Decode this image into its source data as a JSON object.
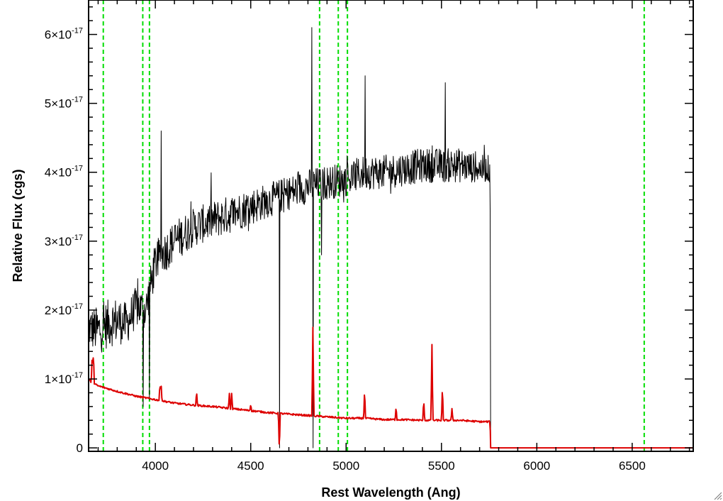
{
  "chart_data": {
    "type": "line",
    "title": "",
    "xlabel": "Rest Wavelength (Ang)",
    "ylabel": "Relative Flux (cgs)",
    "xlim": [
      3650,
      6820
    ],
    "ylim": [
      -0.05,
      6.5
    ],
    "y_scale_exponent": -17,
    "x_ticks": [
      4000,
      4500,
      5000,
      5500,
      6000,
      6500
    ],
    "x_tick_labels": [
      "4000",
      "4500",
      "5000",
      "5500",
      "6000",
      "6500"
    ],
    "y_ticks": [
      0,
      1,
      2,
      3,
      4,
      5,
      6
    ],
    "y_tick_labels": [
      {
        "value": 0,
        "mantissa": "0",
        "times": "",
        "base": "",
        "exp": ""
      },
      {
        "value": 1,
        "mantissa": "1",
        "times": "×",
        "base": "10",
        "exp": "-17"
      },
      {
        "value": 2,
        "mantissa": "2",
        "times": "×",
        "base": "10",
        "exp": "-17"
      },
      {
        "value": 3,
        "mantissa": "3",
        "times": "×",
        "base": "10",
        "exp": "-17"
      },
      {
        "value": 4,
        "mantissa": "4",
        "times": "×",
        "base": "10",
        "exp": "-17"
      },
      {
        "value": 5,
        "mantissa": "5",
        "times": "×",
        "base": "10",
        "exp": "-17"
      },
      {
        "value": 6,
        "mantissa": "6",
        "times": "×",
        "base": "10",
        "exp": "-17"
      }
    ],
    "grid": false,
    "legend": "none",
    "vertical_markers": {
      "color": "#00dd00",
      "style": "dashed",
      "x": [
        3727,
        3934,
        3969,
        4861,
        4959,
        5007,
        6563
      ]
    },
    "series": [
      {
        "color": "#000000",
        "style": "noisy",
        "x": [
          3650,
          3700,
          3750,
          3800,
          3850,
          3900,
          3950,
          4000,
          4050,
          4100,
          4200,
          4300,
          4400,
          4500,
          4600,
          4700,
          4800,
          4900,
          5000,
          5100,
          5200,
          5300,
          5400,
          5500,
          5600,
          5700,
          5755,
          5758,
          6820
        ],
        "y": [
          1.75,
          1.7,
          1.8,
          1.85,
          1.8,
          2.05,
          2.0,
          2.7,
          2.85,
          3.0,
          3.2,
          3.3,
          3.4,
          3.5,
          3.6,
          3.7,
          3.8,
          3.85,
          3.9,
          4.0,
          4.0,
          4.05,
          4.1,
          4.1,
          4.1,
          4.05,
          4.05,
          0,
          0
        ],
        "noise_amplitude": [
          0.3,
          0.35,
          0.35,
          0.35,
          0.3,
          0.3,
          0.3,
          0.3,
          0.3,
          0.3,
          0.28,
          0.28,
          0.28,
          0.27,
          0.25,
          0.25,
          0.25,
          0.25,
          0.25,
          0.25,
          0.25,
          0.25,
          0.25,
          0.25,
          0.25,
          0.2,
          0.2,
          0,
          0
        ],
        "features": [
          {
            "x": 3935,
            "y": 0.6
          },
          {
            "x": 3968,
            "y": 0.7
          },
          {
            "x": 4030,
            "y": 4.6
          },
          {
            "x": 4650,
            "y": 0.0
          },
          {
            "x": 4820,
            "y": 6.1
          },
          {
            "x": 4826,
            "y": 0.0
          },
          {
            "x": 4870,
            "y": 2.8
          },
          {
            "x": 5100,
            "y": 5.4
          },
          {
            "x": 5520,
            "y": 5.3
          }
        ]
      },
      {
        "color": "#dd0000",
        "style": "smooth",
        "x": [
          3650,
          3665,
          3700,
          3800,
          3900,
          4000,
          4100,
          4200,
          4300,
          4400,
          4500,
          4600,
          4700,
          4800,
          4900,
          5000,
          5100,
          5200,
          5300,
          5400,
          5500,
          5600,
          5700,
          5755,
          5758,
          6820
        ],
        "y": [
          1.0,
          0.95,
          0.9,
          0.82,
          0.75,
          0.7,
          0.65,
          0.62,
          0.6,
          0.57,
          0.54,
          0.51,
          0.49,
          0.47,
          0.45,
          0.43,
          0.43,
          0.41,
          0.41,
          0.4,
          0.4,
          0.4,
          0.38,
          0.38,
          0,
          0
        ],
        "emission_lines": [
          {
            "x": 3669,
            "peak": 1.35
          },
          {
            "x": 3675,
            "peak": 1.4
          },
          {
            "x": 4024,
            "peak": 0.93
          },
          {
            "x": 4030,
            "peak": 0.95
          },
          {
            "x": 4216,
            "peak": 0.82
          },
          {
            "x": 4388,
            "peak": 0.79
          },
          {
            "x": 4400,
            "peak": 0.79
          },
          {
            "x": 4500,
            "peak": 0.63
          },
          {
            "x": 4650,
            "peak": -0.05
          },
          {
            "x": 4826,
            "peak": 1.75
          },
          {
            "x": 5097,
            "peak": 0.85
          },
          {
            "x": 5262,
            "peak": 0.6
          },
          {
            "x": 5407,
            "peak": 0.7
          },
          {
            "x": 5450,
            "peak": 1.5
          },
          {
            "x": 5505,
            "peak": 0.9
          },
          {
            "x": 5555,
            "peak": 0.57
          }
        ]
      }
    ]
  }
}
